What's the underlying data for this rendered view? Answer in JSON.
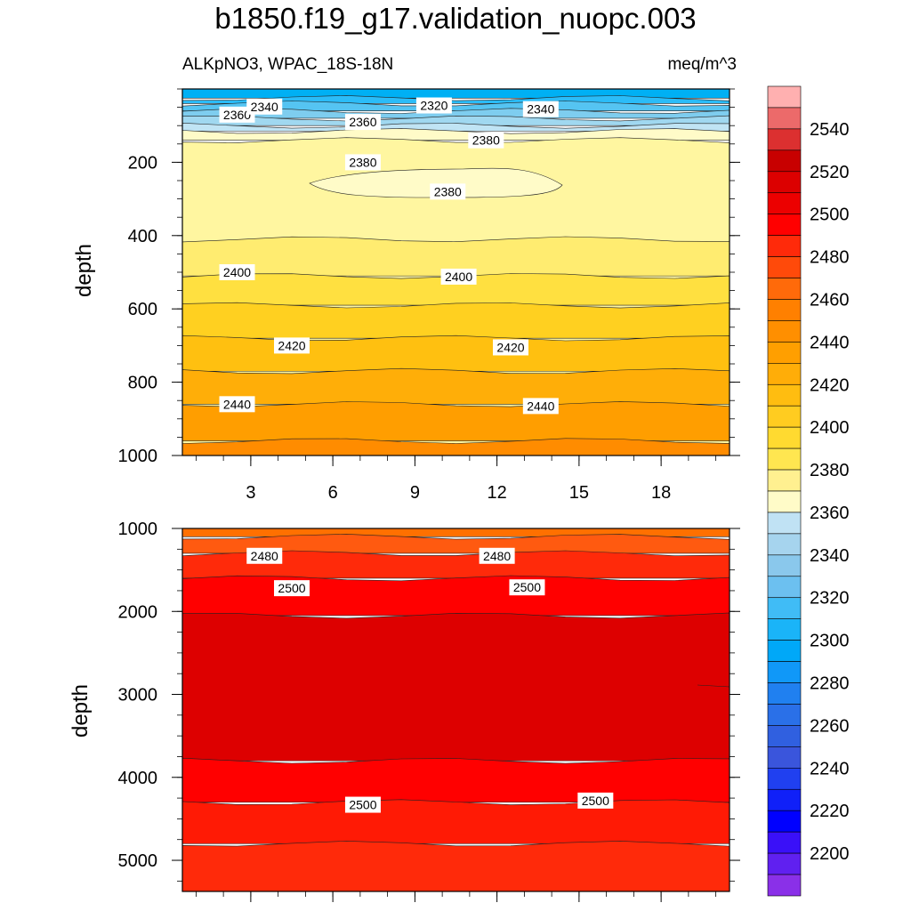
{
  "title": "b1850.f19_g17.validation_nuopc.003",
  "subtitle_left": "ALKpNO3, WPAC_18S-18N",
  "subtitle_right": "meq/m^3",
  "chart_data": [
    {
      "type": "contour",
      "panel": "upper",
      "ylabel": "depth",
      "xlim": [
        0.5,
        20.5
      ],
      "ylim": [
        1000,
        0
      ],
      "x_ticks": [
        3,
        6,
        9,
        12,
        15,
        18
      ],
      "y_ticks": [
        200,
        400,
        600,
        800,
        1000
      ],
      "bands": [
        {
          "top": 0,
          "bottom": 25,
          "level": 2310
        },
        {
          "top": 25,
          "bottom": 40,
          "level": 2320
        },
        {
          "top": 40,
          "bottom": 60,
          "level": 2330
        },
        {
          "top": 60,
          "bottom": 80,
          "level": 2340
        },
        {
          "top": 80,
          "bottom": 100,
          "level": 2350
        },
        {
          "top": 100,
          "bottom": 115,
          "level": 2360
        },
        {
          "top": 115,
          "bottom": 140,
          "level": 2370
        },
        {
          "top": 140,
          "bottom": 1000,
          "level": 2380
        },
        {
          "top": 410,
          "bottom": 510,
          "level": 2390
        },
        {
          "top": 510,
          "bottom": 590,
          "level": 2400
        },
        {
          "top": 590,
          "bottom": 680,
          "level": 2410
        },
        {
          "top": 680,
          "bottom": 770,
          "level": 2420
        },
        {
          "top": 770,
          "bottom": 860,
          "level": 2430
        },
        {
          "top": 860,
          "bottom": 960,
          "level": 2440
        },
        {
          "top": 960,
          "bottom": 1000,
          "level": 2450
        }
      ],
      "contour_labels": [
        {
          "x": 2.5,
          "y": 70,
          "text": "2360"
        },
        {
          "x": 3.5,
          "y": 48,
          "text": "2340"
        },
        {
          "x": 9.7,
          "y": 45,
          "text": "2320"
        },
        {
          "x": 13.6,
          "y": 55,
          "text": "2340"
        },
        {
          "x": 7.1,
          "y": 90,
          "text": "2360"
        },
        {
          "x": 11.6,
          "y": 140,
          "text": "2380"
        },
        {
          "x": 7.1,
          "y": 200,
          "text": "2380"
        },
        {
          "x": 10.2,
          "y": 280,
          "text": "2380"
        },
        {
          "x": 2.5,
          "y": 500,
          "text": "2400"
        },
        {
          "x": 10.6,
          "y": 512,
          "text": "2400"
        },
        {
          "x": 4.5,
          "y": 700,
          "text": "2420"
        },
        {
          "x": 12.5,
          "y": 705,
          "text": "2420"
        },
        {
          "x": 2.5,
          "y": 860,
          "text": "2440"
        },
        {
          "x": 13.6,
          "y": 865,
          "text": "2440"
        }
      ]
    },
    {
      "type": "contour",
      "panel": "lower",
      "ylabel": "depth",
      "xlim": [
        0.5,
        20.5
      ],
      "ylim": [
        5375,
        1000
      ],
      "x_ticks": [
        3,
        6,
        9,
        12,
        15,
        18
      ],
      "y_ticks": [
        1000,
        2000,
        3000,
        4000,
        5000
      ],
      "bands": [
        {
          "top": 1000,
          "bottom": 1100,
          "level": 2460
        },
        {
          "top": 1100,
          "bottom": 1300,
          "level": 2470
        },
        {
          "top": 1300,
          "bottom": 1600,
          "level": 2480
        },
        {
          "top": 1600,
          "bottom": 2050,
          "level": 2500
        },
        {
          "top": 2050,
          "bottom": 3800,
          "level": 2510
        },
        {
          "top": 3800,
          "bottom": 4300,
          "level": 2500
        },
        {
          "top": 4300,
          "bottom": 4800,
          "level": 2490
        },
        {
          "top": 4800,
          "bottom": 5375,
          "level": 2480
        }
      ],
      "contour_labels": [
        {
          "x": 3.5,
          "y": 1330,
          "text": "2480"
        },
        {
          "x": 12.0,
          "y": 1330,
          "text": "2480"
        },
        {
          "x": 4.5,
          "y": 1720,
          "text": "2500"
        },
        {
          "x": 13.1,
          "y": 1710,
          "text": "2500"
        },
        {
          "x": 7.1,
          "y": 4330,
          "text": "2500"
        },
        {
          "x": 15.6,
          "y": 4280,
          "text": "2500"
        }
      ]
    }
  ],
  "colorbar": {
    "labels": [
      "2540",
      "2520",
      "2500",
      "2480",
      "2460",
      "2440",
      "2420",
      "2400",
      "2380",
      "2360",
      "2340",
      "2320",
      "2300",
      "2280",
      "2260",
      "2240",
      "2220",
      "2200"
    ],
    "colors": [
      "#ffb0b0",
      "#ec6a6a",
      "#dc3030",
      "#c80000",
      "#dc0000",
      "#ec0000",
      "#ff0000",
      "#ff2a0a",
      "#ff4a0a",
      "#ff6a0a",
      "#ff8000",
      "#ff8f00",
      "#ff9f00",
      "#ffad08",
      "#ffbd10",
      "#ffcc20",
      "#ffda30",
      "#ffe650",
      "#fff090",
      "#fffbc8",
      "#c0e2f4",
      "#a6d4ee",
      "#8ac8ec",
      "#6cc0f0",
      "#40bcf6",
      "#1ab4f8",
      "#00a8f8",
      "#1098f8",
      "#2080f0",
      "#2a70e8",
      "#3060e0",
      "#3a55dc",
      "#2040f0",
      "#1020f8",
      "#0000ff",
      "#3a10f8",
      "#6020f0",
      "#8a30e8"
    ]
  },
  "level_colors": {
    "2310": "#00b0f4",
    "2320": "#2bbcf8",
    "2330": "#55c4f2",
    "2340": "#7ecdef",
    "2350": "#a0d8f0",
    "2360": "#c0e4f4",
    "2370": "#fffbc8",
    "2380": "#fff6a0",
    "2390": "#ffec70",
    "2400": "#ffe040",
    "2410": "#ffd020",
    "2420": "#ffc010",
    "2430": "#ffae08",
    "2440": "#ff9e00",
    "2450": "#ff8c00",
    "2460": "#ff7000",
    "2470": "#ff5a10",
    "2480": "#ff2a0a",
    "2490": "#ff1a05",
    "2500": "#ff0000",
    "2510": "#dd0000"
  }
}
